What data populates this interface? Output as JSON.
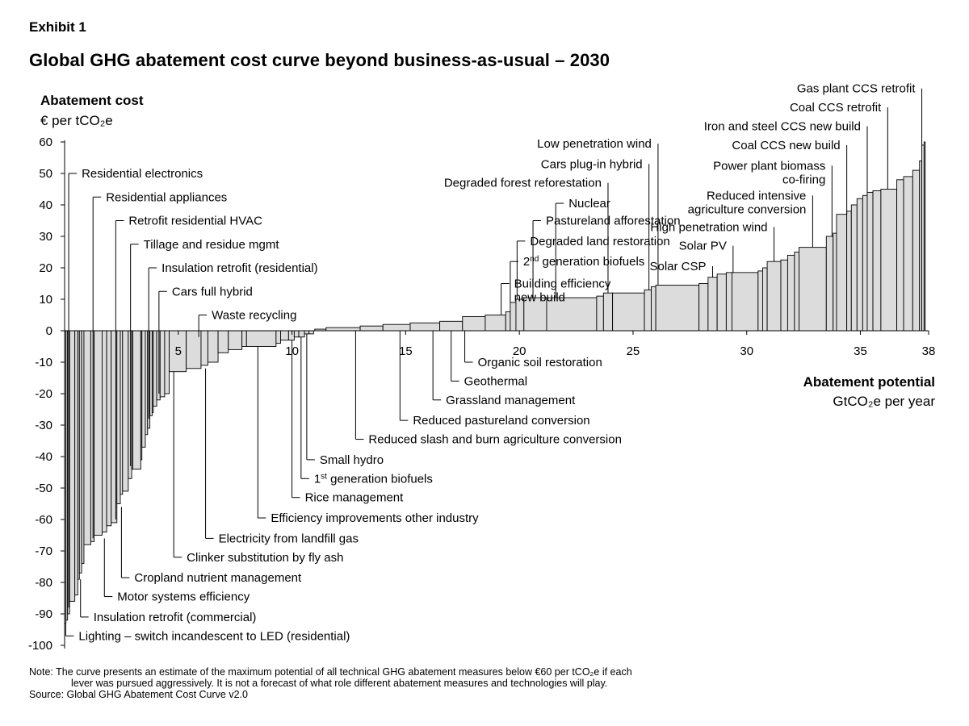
{
  "exhibit": "Exhibit 1",
  "title": "Global GHG abatement cost curve beyond business-as-usual – 2030",
  "y_label": "Abatement cost",
  "y_unit": "€ per tCO₂e",
  "x_label": "Abatement potential",
  "x_unit": "GtCO₂e per year",
  "note_line1": "Note: The curve presents an estimate of the maximum potential of all technical GHG abatement measures below €60 per tCO₂e if each",
  "note_line2": "lever was pursued aggressively. It is not a forecast of what role different abatement measures and technologies will play.",
  "source": "Source: Global GHG Abatement Cost Curve v2.0",
  "colors": {
    "bar_fill": "#dcdcdc",
    "bar_stroke": "#000000"
  },
  "chart_data": {
    "type": "bar",
    "subtype": "variable-width cost curve",
    "xlim": [
      0,
      38
    ],
    "ylim": [
      -100,
      60
    ],
    "x_ticks": [
      "5",
      "10",
      "15",
      "20",
      "25",
      "30",
      "35",
      "38"
    ],
    "x_tick_values": [
      5,
      10,
      15,
      20,
      25,
      30,
      35,
      38
    ],
    "y_ticks": [
      "60",
      "50",
      "40",
      "30",
      "20",
      "10",
      "0",
      "-10",
      "-20",
      "-30",
      "-40",
      "-50",
      "-60",
      "-70",
      "-80",
      "-90",
      "-100"
    ],
    "y_tick_values": [
      60,
      50,
      40,
      30,
      20,
      10,
      0,
      -10,
      -20,
      -30,
      -40,
      -50,
      -60,
      -70,
      -80,
      -90,
      -100
    ],
    "bars": [
      {
        "x0": 0.0,
        "x1": 0.06,
        "y": -93
      },
      {
        "x0": 0.06,
        "x1": 0.13,
        "y": -92
      },
      {
        "x0": 0.13,
        "x1": 0.22,
        "y": -90
      },
      {
        "x0": 0.22,
        "x1": 0.45,
        "y": -86
      },
      {
        "x0": 0.45,
        "x1": 0.58,
        "y": -84
      },
      {
        "x0": 0.58,
        "x1": 0.65,
        "y": -79
      },
      {
        "x0": 0.65,
        "x1": 0.75,
        "y": -77
      },
      {
        "x0": 0.75,
        "x1": 0.85,
        "y": -74
      },
      {
        "x0": 0.85,
        "x1": 1.15,
        "y": -68
      },
      {
        "x0": 1.15,
        "x1": 1.3,
        "y": -67
      },
      {
        "x0": 1.3,
        "x1": 1.65,
        "y": -65
      },
      {
        "x0": 1.65,
        "x1": 1.85,
        "y": -64
      },
      {
        "x0": 1.85,
        "x1": 2.05,
        "y": -62
      },
      {
        "x0": 2.05,
        "x1": 2.3,
        "y": -61
      },
      {
        "x0": 2.3,
        "x1": 2.45,
        "y": -55
      },
      {
        "x0": 2.45,
        "x1": 2.55,
        "y": -52
      },
      {
        "x0": 2.55,
        "x1": 2.8,
        "y": -51
      },
      {
        "x0": 2.8,
        "x1": 2.95,
        "y": -47
      },
      {
        "x0": 2.95,
        "x1": 3.0,
        "y": -44
      },
      {
        "x0": 3.0,
        "x1": 3.35,
        "y": -44
      },
      {
        "x0": 3.35,
        "x1": 3.4,
        "y": -41
      },
      {
        "x0": 3.4,
        "x1": 3.55,
        "y": -37
      },
      {
        "x0": 3.55,
        "x1": 3.65,
        "y": -33
      },
      {
        "x0": 3.65,
        "x1": 3.75,
        "y": -31
      },
      {
        "x0": 3.75,
        "x1": 3.85,
        "y": -27
      },
      {
        "x0": 3.85,
        "x1": 3.9,
        "y": -26
      },
      {
        "x0": 3.9,
        "x1": 4.05,
        "y": -24
      },
      {
        "x0": 4.05,
        "x1": 4.2,
        "y": -22
      },
      {
        "x0": 4.2,
        "x1": 4.4,
        "y": -21
      },
      {
        "x0": 4.4,
        "x1": 4.6,
        "y": -20
      },
      {
        "x0": 4.6,
        "x1": 5.35,
        "y": -13
      },
      {
        "x0": 5.35,
        "x1": 6.0,
        "y": -12
      },
      {
        "x0": 6.0,
        "x1": 6.3,
        "y": -11
      },
      {
        "x0": 6.3,
        "x1": 6.75,
        "y": -10
      },
      {
        "x0": 6.75,
        "x1": 7.2,
        "y": -7
      },
      {
        "x0": 7.2,
        "x1": 7.8,
        "y": -6
      },
      {
        "x0": 7.8,
        "x1": 8.0,
        "y": -5
      },
      {
        "x0": 8.0,
        "x1": 9.3,
        "y": -5
      },
      {
        "x0": 9.3,
        "x1": 9.5,
        "y": -4
      },
      {
        "x0": 9.5,
        "x1": 9.85,
        "y": -3
      },
      {
        "x0": 9.85,
        "x1": 10.1,
        "y": -3
      },
      {
        "x0": 10.1,
        "x1": 10.3,
        "y": -2
      },
      {
        "x0": 10.3,
        "x1": 10.55,
        "y": -2
      },
      {
        "x0": 10.55,
        "x1": 10.75,
        "y": -1
      },
      {
        "x0": 10.75,
        "x1": 10.95,
        "y": -1
      },
      {
        "x0": 11.0,
        "x1": 11.5,
        "y": 0.5
      },
      {
        "x0": 11.5,
        "x1": 13.0,
        "y": 1
      },
      {
        "x0": 13.0,
        "x1": 14.0,
        "y": 1.5
      },
      {
        "x0": 14.0,
        "x1": 15.2,
        "y": 2
      },
      {
        "x0": 15.2,
        "x1": 16.5,
        "y": 2.5
      },
      {
        "x0": 16.5,
        "x1": 17.5,
        "y": 3
      },
      {
        "x0": 17.5,
        "x1": 18.5,
        "y": 4.5
      },
      {
        "x0": 18.5,
        "x1": 19.4,
        "y": 5
      },
      {
        "x0": 19.4,
        "x1": 19.6,
        "y": 6
      },
      {
        "x0": 19.6,
        "x1": 19.85,
        "y": 9
      },
      {
        "x0": 19.85,
        "x1": 20.2,
        "y": 10
      },
      {
        "x0": 20.2,
        "x1": 21.2,
        "y": 10.5
      },
      {
        "x0": 21.2,
        "x1": 23.4,
        "y": 10.5
      },
      {
        "x0": 23.4,
        "x1": 23.7,
        "y": 11
      },
      {
        "x0": 23.7,
        "x1": 24.1,
        "y": 12
      },
      {
        "x0": 24.1,
        "x1": 25.5,
        "y": 12
      },
      {
        "x0": 25.5,
        "x1": 25.8,
        "y": 13
      },
      {
        "x0": 25.8,
        "x1": 26.0,
        "y": 14
      },
      {
        "x0": 26.0,
        "x1": 27.9,
        "y": 14.5
      },
      {
        "x0": 27.9,
        "x1": 28.3,
        "y": 15
      },
      {
        "x0": 28.3,
        "x1": 28.7,
        "y": 17
      },
      {
        "x0": 28.7,
        "x1": 29.1,
        "y": 18
      },
      {
        "x0": 29.1,
        "x1": 29.35,
        "y": 18.5
      },
      {
        "x0": 29.35,
        "x1": 30.5,
        "y": 18.5
      },
      {
        "x0": 30.5,
        "x1": 30.7,
        "y": 19
      },
      {
        "x0": 30.7,
        "x1": 30.9,
        "y": 20
      },
      {
        "x0": 30.9,
        "x1": 31.5,
        "y": 22
      },
      {
        "x0": 31.5,
        "x1": 31.8,
        "y": 22.5
      },
      {
        "x0": 31.8,
        "x1": 32.1,
        "y": 24
      },
      {
        "x0": 32.1,
        "x1": 32.3,
        "y": 25
      },
      {
        "x0": 32.3,
        "x1": 33.5,
        "y": 26.5
      },
      {
        "x0": 33.5,
        "x1": 33.8,
        "y": 30
      },
      {
        "x0": 33.8,
        "x1": 33.95,
        "y": 31
      },
      {
        "x0": 33.95,
        "x1": 34.4,
        "y": 37
      },
      {
        "x0": 34.4,
        "x1": 34.6,
        "y": 38
      },
      {
        "x0": 34.6,
        "x1": 34.85,
        "y": 40
      },
      {
        "x0": 34.85,
        "x1": 35.1,
        "y": 42
      },
      {
        "x0": 35.1,
        "x1": 35.3,
        "y": 43
      },
      {
        "x0": 35.3,
        "x1": 35.55,
        "y": 44
      },
      {
        "x0": 35.55,
        "x1": 35.9,
        "y": 44.5
      },
      {
        "x0": 35.9,
        "x1": 36.6,
        "y": 45
      },
      {
        "x0": 36.6,
        "x1": 36.9,
        "y": 48
      },
      {
        "x0": 36.9,
        "x1": 37.3,
        "y": 49
      },
      {
        "x0": 37.3,
        "x1": 37.6,
        "y": 51
      },
      {
        "x0": 37.6,
        "x1": 37.7,
        "y": 54
      },
      {
        "x0": 37.7,
        "x1": 37.8,
        "y": 59
      },
      {
        "x0": 37.8,
        "x1": 37.85,
        "y": 60
      }
    ],
    "annotations": [
      {
        "text": "Residential electronics",
        "side": "top",
        "x": 0.18,
        "y": -88,
        "label_y": 50
      },
      {
        "text": "Residential appliances",
        "side": "top",
        "x": 1.25,
        "y": -66,
        "label_y": 42.5
      },
      {
        "text": "Retrofit residential HVAC",
        "side": "top",
        "x": 2.25,
        "y": -60,
        "label_y": 35
      },
      {
        "text": "Tillage and residue mgmt",
        "side": "top",
        "x": 2.9,
        "y": -43,
        "label_y": 27.5
      },
      {
        "text": "Insulation retrofit (residential)",
        "side": "top",
        "x": 3.7,
        "y": -28,
        "label_y": 20
      },
      {
        "text": "Cars full hybrid",
        "side": "top",
        "x": 4.15,
        "y": -20,
        "label_y": 12.5
      },
      {
        "text": "Waste recycling",
        "side": "top",
        "x": 5.9,
        "y": -2,
        "label_y": 5
      },
      {
        "text": "Lighting – switch incandescent to LED (residential)",
        "side": "bottom",
        "x": 0.05,
        "y": -93,
        "label_y": -97
      },
      {
        "text": "Insulation retrofit (commercial)",
        "side": "bottom",
        "x": 0.7,
        "y": -79,
        "label_y": -91
      },
      {
        "text": "Motor systems efficiency",
        "side": "bottom",
        "x": 1.75,
        "y": -66,
        "label_y": -84.5
      },
      {
        "text": "Cropland nutrient management",
        "side": "bottom",
        "x": 2.5,
        "y": -56,
        "label_y": -78.5
      },
      {
        "text": "Clinker substitution by fly ash",
        "side": "bottom",
        "x": 4.8,
        "y": -13,
        "label_y": -72
      },
      {
        "text": "Electricity from landfill gas",
        "side": "bottom",
        "x": 6.2,
        "y": -12,
        "label_y": -66
      },
      {
        "text": "Efficiency improvements other industry",
        "side": "bottom",
        "x": 8.5,
        "y": -5,
        "label_y": -59.5
      },
      {
        "text": "Rice management",
        "side": "bottom",
        "x": 10.0,
        "y": -3,
        "label_y": -53
      },
      {
        "text": "1st generation biofuels",
        "side": "bottom",
        "x": 10.4,
        "y": -2,
        "label_y": -47,
        "sup": "st"
      },
      {
        "text": "Small hydro",
        "side": "bottom",
        "x": 10.65,
        "y": -1,
        "label_y": -41
      },
      {
        "text": "Reduced slash and burn agriculture conversion",
        "side": "bottom",
        "x": 12.8,
        "y": 0,
        "label_y": -34.5
      },
      {
        "text": "Reduced pastureland conversion",
        "side": "bottom",
        "x": 14.75,
        "y": 0,
        "label_y": -28.5
      },
      {
        "text": "Grassland management",
        "side": "bottom",
        "x": 16.2,
        "y": 0,
        "label_y": -22
      },
      {
        "text": "Geothermal",
        "side": "bottom",
        "x": 17.0,
        "y": 0,
        "label_y": -16
      },
      {
        "text": "Organic soil restoration",
        "side": "bottom",
        "x": 17.6,
        "y": 0,
        "label_y": -10
      },
      {
        "text": "Building efficiency",
        "text2": "new build",
        "side": "top",
        "x": 19.2,
        "y": 5,
        "label_y": 15
      },
      {
        "text": "2nd generation biofuels",
        "side": "top",
        "x": 19.6,
        "y": 9,
        "label_y": 22,
        "sup": "nd"
      },
      {
        "text": "Degraded land restoration",
        "side": "top",
        "x": 19.9,
        "y": 10,
        "label_y": 28.5
      },
      {
        "text": "Pastureland afforestation",
        "side": "top",
        "x": 20.6,
        "y": 10.5,
        "label_y": 35
      },
      {
        "text": "Nuclear",
        "side": "top",
        "x": 21.6,
        "y": 10.5,
        "label_y": 40.5
      },
      {
        "text": "Degraded forest reforestation",
        "side": "top",
        "x": 23.9,
        "y": 12,
        "label_y": 47
      },
      {
        "text": "Cars plug-in hybrid",
        "side": "top",
        "x": 25.7,
        "y": 13,
        "label_y": 53
      },
      {
        "text": "Low penetration wind",
        "side": "top",
        "x": 26.1,
        "y": 14.5,
        "label_y": 59.5
      },
      {
        "text": "Solar CSP",
        "side": "top",
        "x": 28.5,
        "y": 17,
        "label_y": 20.5
      },
      {
        "text": "Solar PV",
        "side": "top",
        "x": 29.4,
        "y": 18.5,
        "label_y": 27
      },
      {
        "text": "High penetration wind",
        "side": "top",
        "x": 31.2,
        "y": 22,
        "label_y": 33
      },
      {
        "text": "Reduced intensive",
        "text2": "agriculture conversion",
        "side": "top",
        "x": 32.9,
        "y": 26.5,
        "label_y": 43
      },
      {
        "text": "Power plant biomass",
        "text2": "co-firing",
        "side": "top",
        "x": 33.75,
        "y": 30,
        "label_y": 52.5
      },
      {
        "text": "Coal CCS new build",
        "side": "top",
        "x": 34.4,
        "y": 37,
        "label_y": 59
      },
      {
        "text": "Iron and steel CCS new build",
        "side": "top",
        "x": 35.3,
        "y": 44,
        "label_y": 65
      },
      {
        "text": "Coal CCS retrofit",
        "side": "top",
        "x": 36.2,
        "y": 45,
        "label_y": 71
      },
      {
        "text": "Gas plant CCS retrofit",
        "side": "top",
        "x": 37.7,
        "y": 59,
        "label_y": 77
      }
    ]
  }
}
